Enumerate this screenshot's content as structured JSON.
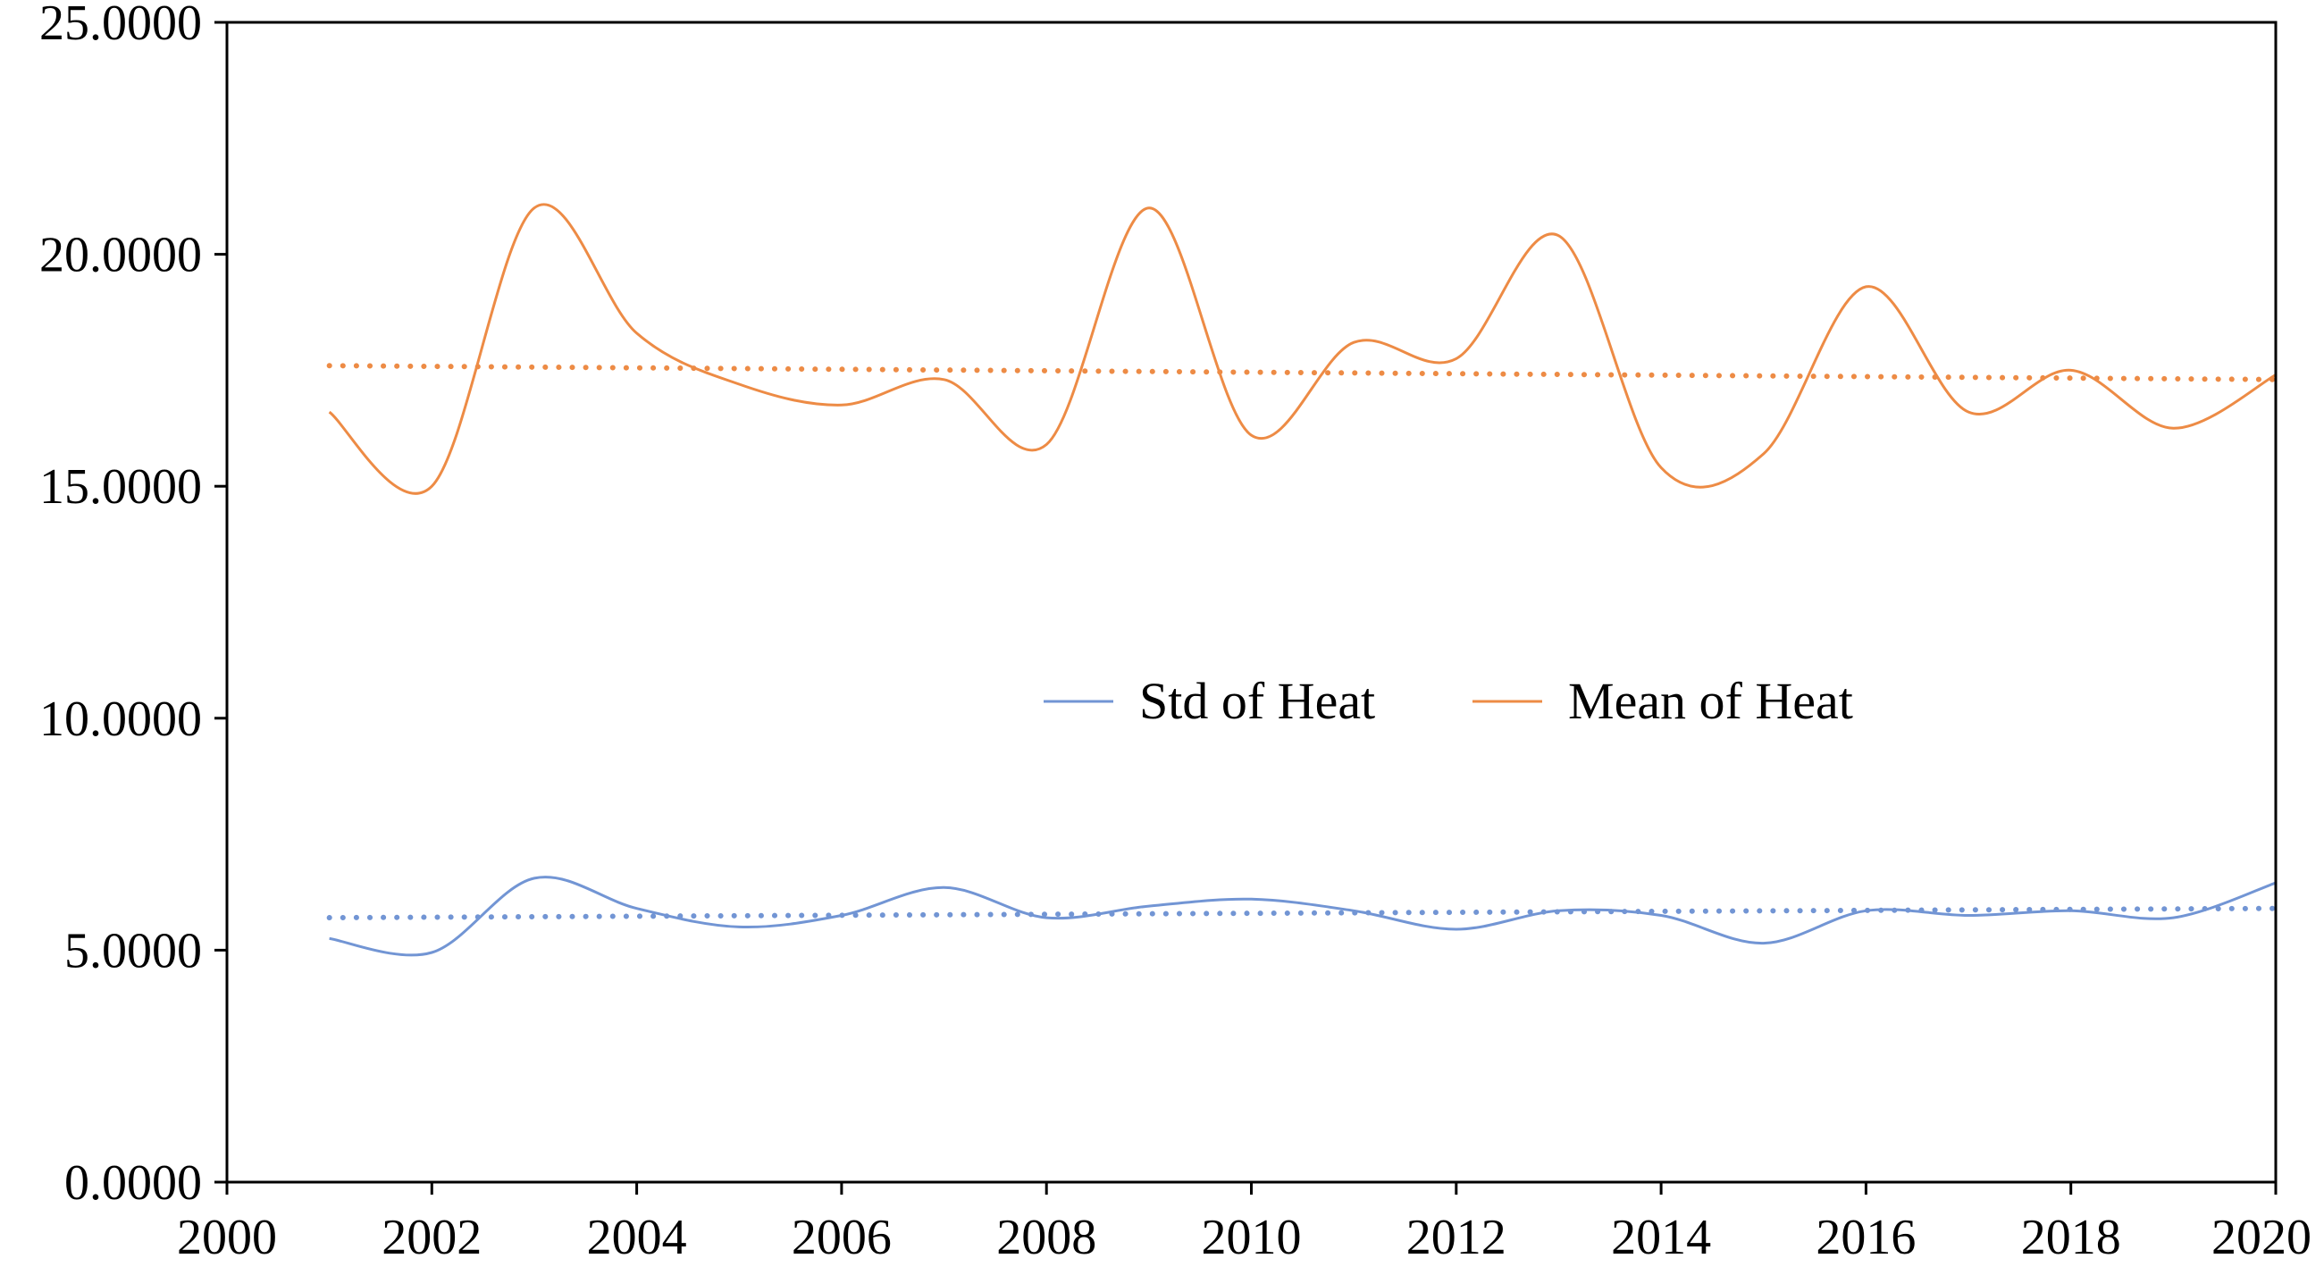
{
  "chart_data": {
    "type": "line",
    "title": "",
    "xlabel": "",
    "ylabel": "",
    "xlim": [
      2000,
      2020
    ],
    "ylim": [
      0,
      25
    ],
    "x_ticks": [
      2000,
      2002,
      2004,
      2006,
      2008,
      2010,
      2012,
      2014,
      2016,
      2018,
      2020
    ],
    "x_tick_labels": [
      "2000",
      "2002",
      "2004",
      "2006",
      "2008",
      "2010",
      "2012",
      "2014",
      "2016",
      "2018",
      "2020"
    ],
    "y_ticks": [
      0,
      5,
      10,
      15,
      20,
      25
    ],
    "y_tick_labels": [
      "0.0000",
      "5.0000",
      "10.0000",
      "15.0000",
      "20.0000",
      "25.0000"
    ],
    "grid": false,
    "legend_position": "center",
    "x": [
      2001,
      2002,
      2003,
      2004,
      2005,
      2006,
      2007,
      2008,
      2009,
      2010,
      2011,
      2012,
      2013,
      2014,
      2015,
      2016,
      2017,
      2018,
      2019,
      2020
    ],
    "series": [
      {
        "name": "Std of Heat",
        "color": "#7295d4",
        "values": [
          5.25,
          4.95,
          6.55,
          5.9,
          5.5,
          5.75,
          6.35,
          5.7,
          5.95,
          6.1,
          5.85,
          5.45,
          5.85,
          5.75,
          5.15,
          5.85,
          5.75,
          5.85,
          5.7,
          6.45
        ],
        "trendline": {
          "style": "dotted",
          "start": 5.7,
          "end": 5.9
        }
      },
      {
        "name": "Mean of Heat",
        "color": "#ed8b45",
        "values": [
          16.6,
          15.0,
          21.0,
          18.3,
          17.2,
          16.75,
          17.3,
          15.9,
          21.0,
          16.1,
          18.1,
          17.75,
          20.4,
          15.4,
          15.7,
          19.3,
          16.6,
          17.5,
          16.25,
          17.4
        ],
        "trendline": {
          "style": "dotted",
          "start": 17.6,
          "end": 17.3
        }
      }
    ]
  }
}
